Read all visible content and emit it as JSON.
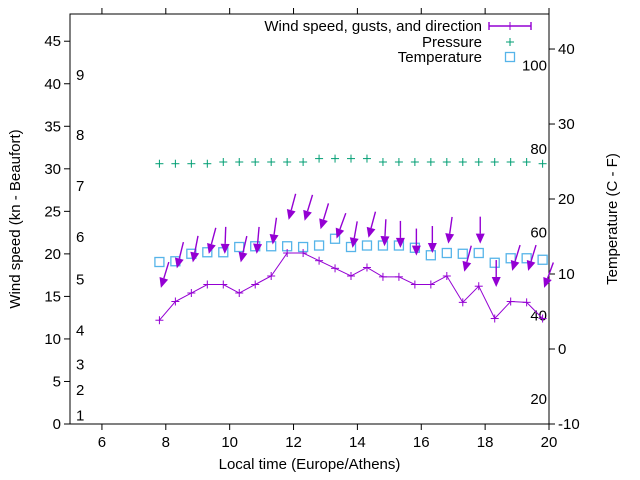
{
  "chart": {
    "background": "#ffffff",
    "axis_color": "#000000",
    "x_axis": {
      "label": "Local time (Europe/Athens)",
      "min": 5,
      "max": 20,
      "ticks": [
        6,
        8,
        10,
        12,
        14,
        16,
        18,
        20
      ]
    },
    "y_axis_left": {
      "label": "Wind speed (kn - Beaufort)",
      "min": 0,
      "max": 48.2,
      "ticks": [
        0,
        5,
        10,
        15,
        20,
        25,
        30,
        35,
        40,
        45
      ],
      "beaufort_scale": [
        {
          "force": "1",
          "kn": 1
        },
        {
          "force": "2",
          "kn": 4
        },
        {
          "force": "3",
          "kn": 7
        },
        {
          "force": "4",
          "kn": 11
        },
        {
          "force": "5",
          "kn": 17
        },
        {
          "force": "6",
          "kn": 22
        },
        {
          "force": "7",
          "kn": 28
        },
        {
          "force": "8",
          "kn": 34
        },
        {
          "force": "9",
          "kn": 41
        }
      ]
    },
    "y_axis_right": {
      "label": "Temperature (C - F)",
      "min": -10,
      "max": 44.67,
      "ticks_celsius": [
        -10,
        0,
        10,
        20,
        30,
        40
      ],
      "inner_labels_fahrenheit": [
        20,
        40,
        60,
        80,
        100
      ]
    },
    "legend": [
      {
        "label": "Wind speed, gusts, and direction",
        "color": "#9400d3",
        "style": "line-with-point"
      },
      {
        "label": "Pressure",
        "color": "#009e73",
        "style": "plus"
      },
      {
        "label": "Temperature",
        "color": "#56b4e9",
        "style": "open-square"
      }
    ]
  },
  "chart_data": {
    "type": "line",
    "title": "Wind speed, gusts, and direction / Pressure / Temperature",
    "xlabel": "Local time (Europe/Athens)",
    "ylabel_left": "Wind speed (kn - Beaufort)",
    "ylabel_right": "Temperature (C - F)",
    "x_hours": [
      7.8,
      8.3,
      8.8,
      9.3,
      9.8,
      10.3,
      10.8,
      11.3,
      11.8,
      12.3,
      12.8,
      13.3,
      13.8,
      14.3,
      14.8,
      15.3,
      15.8,
      16.3,
      16.8,
      17.3,
      17.8,
      18.3,
      18.8,
      19.3,
      19.8
    ],
    "series": [
      {
        "name": "wind_speed_kn",
        "color": "#9400d3",
        "axis": "left",
        "values": [
          12.2,
          14.4,
          15.4,
          16.4,
          16.4,
          15.4,
          16.4,
          17.4,
          20.1,
          20.1,
          19.2,
          18.3,
          17.4,
          18.4,
          17.3,
          17.3,
          16.4,
          16.4,
          17.4,
          14.3,
          16.2,
          12.4,
          14.4,
          14.3,
          12.4
        ]
      },
      {
        "name": "wind_gust_kn",
        "color": "#9400d3",
        "axis": "left",
        "values": [
          16.0,
          18.3,
          19.0,
          20.0,
          20.0,
          19.0,
          20.0,
          21.1,
          24.0,
          23.9,
          22.9,
          21.8,
          20.7,
          21.9,
          20.9,
          20.7,
          19.8,
          20.1,
          21.2,
          17.9,
          21.2,
          16.1,
          18.0,
          18.0,
          16.0
        ]
      },
      {
        "name": "wind_direction_deg_toward",
        "color": "#9400d3",
        "axis": "none",
        "values": [
          197,
          194,
          191,
          195,
          182,
          193,
          185,
          188,
          195,
          197,
          197,
          200,
          190,
          195,
          183,
          180,
          180,
          180,
          188,
          195,
          180,
          180,
          197,
          197,
          200
        ]
      },
      {
        "name": "pressure_plotted_left_axis_units",
        "color": "#009e73",
        "axis": "left",
        "values": [
          30.6,
          30.6,
          30.6,
          30.6,
          30.8,
          30.8,
          30.8,
          30.8,
          30.8,
          30.8,
          31.2,
          31.2,
          31.2,
          31.2,
          30.8,
          30.8,
          30.8,
          30.8,
          30.8,
          30.8,
          30.8,
          30.8,
          30.8,
          30.8,
          30.6
        ]
      },
      {
        "name": "temperature_c",
        "color": "#56b4e9",
        "axis": "right",
        "values": [
          11.6,
          11.7,
          12.7,
          12.9,
          12.9,
          13.6,
          13.7,
          13.7,
          13.7,
          13.6,
          13.8,
          14.7,
          13.6,
          13.8,
          13.8,
          13.8,
          13.5,
          12.5,
          12.8,
          12.7,
          12.8,
          11.5,
          12.1,
          12.1,
          11.9
        ]
      }
    ],
    "legend_position": "top-right-inside",
    "grid": false
  }
}
